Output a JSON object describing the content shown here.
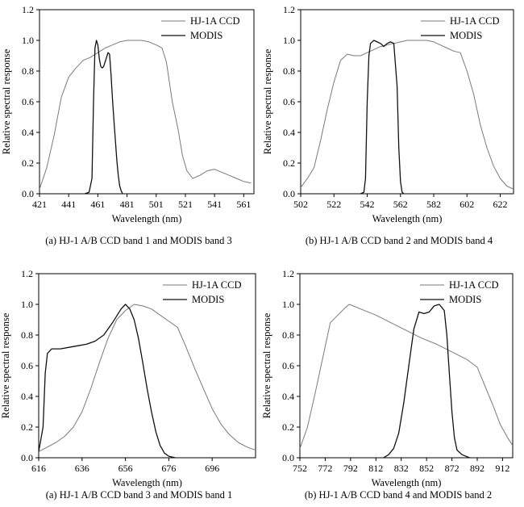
{
  "figure": {
    "panels": [
      {
        "caption": "(a) HJ-1 A/B CCD band 1 and MODIS band 3"
      },
      {
        "caption": "(b) HJ-1 A/B CCD band 2 and MODIS band 4"
      },
      {
        "caption": "(a) HJ-1 A/B CCD band 3 and MODIS band 1"
      },
      {
        "caption": "(b) HJ-1 A/B CCD band 4 and MODIS band 2"
      }
    ]
  },
  "colors": {
    "hj": "#7a7a7a",
    "modis": "#111111"
  },
  "chart_data": [
    {
      "type": "line",
      "xlabel": "Wavelength (nm)",
      "ylabel": "Relative spectral response",
      "xlim": [
        421,
        568
      ],
      "ylim": [
        0,
        1.2
      ],
      "xticks": [
        421,
        441,
        461,
        481,
        501,
        521,
        541,
        561
      ],
      "yticks": [
        0.0,
        0.2,
        0.4,
        0.6,
        0.8,
        1.0,
        1.2
      ],
      "legend_position": "top-right",
      "series": [
        {
          "name": "HJ-1A CCD",
          "points": [
            [
              421,
              0.03
            ],
            [
              426,
              0.17
            ],
            [
              431,
              0.38
            ],
            [
              436,
              0.63
            ],
            [
              441,
              0.76
            ],
            [
              446,
              0.82
            ],
            [
              451,
              0.87
            ],
            [
              456,
              0.89
            ],
            [
              461,
              0.92
            ],
            [
              466,
              0.95
            ],
            [
              471,
              0.97
            ],
            [
              476,
              0.99
            ],
            [
              481,
              1.0
            ],
            [
              486,
              1.0
            ],
            [
              491,
              1.0
            ],
            [
              496,
              0.99
            ],
            [
              501,
              0.97
            ],
            [
              505,
              0.95
            ],
            [
              508,
              0.86
            ],
            [
              512,
              0.6
            ],
            [
              516,
              0.42
            ],
            [
              519,
              0.25
            ],
            [
              522,
              0.15
            ],
            [
              526,
              0.1
            ],
            [
              531,
              0.12
            ],
            [
              536,
              0.15
            ],
            [
              541,
              0.16
            ],
            [
              546,
              0.14
            ],
            [
              551,
              0.12
            ],
            [
              556,
              0.1
            ],
            [
              561,
              0.08
            ],
            [
              566,
              0.07
            ]
          ]
        },
        {
          "name": "MODIS",
          "points": [
            [
              452,
              0.0
            ],
            [
              455,
              0.01
            ],
            [
              457,
              0.1
            ],
            [
              458,
              0.6
            ],
            [
              459,
              0.95
            ],
            [
              460,
              1.0
            ],
            [
              461,
              0.97
            ],
            [
              462,
              0.88
            ],
            [
              463,
              0.83
            ],
            [
              464,
              0.82
            ],
            [
              465,
              0.83
            ],
            [
              466,
              0.86
            ],
            [
              467,
              0.89
            ],
            [
              468,
              0.92
            ],
            [
              469,
              0.91
            ],
            [
              470,
              0.78
            ],
            [
              471,
              0.62
            ],
            [
              472,
              0.48
            ],
            [
              473,
              0.35
            ],
            [
              474,
              0.22
            ],
            [
              475,
              0.12
            ],
            [
              476,
              0.05
            ],
            [
              477,
              0.02
            ],
            [
              478,
              0.0
            ]
          ]
        }
      ]
    },
    {
      "type": "line",
      "xlabel": "Wavelength (nm)",
      "ylabel": "Relative spectral response",
      "xlim": [
        502,
        630
      ],
      "ylim": [
        0,
        1.2
      ],
      "xticks": [
        502,
        522,
        542,
        562,
        582,
        602,
        622
      ],
      "yticks": [
        0.0,
        0.2,
        0.4,
        0.6,
        0.8,
        1.0,
        1.2
      ],
      "legend_position": "top-right",
      "series": [
        {
          "name": "HJ-1A CCD",
          "points": [
            [
              502,
              0.04
            ],
            [
              506,
              0.1
            ],
            [
              510,
              0.17
            ],
            [
              514,
              0.35
            ],
            [
              518,
              0.55
            ],
            [
              522,
              0.73
            ],
            [
              526,
              0.87
            ],
            [
              530,
              0.91
            ],
            [
              534,
              0.9
            ],
            [
              538,
              0.9
            ],
            [
              542,
              0.92
            ],
            [
              546,
              0.94
            ],
            [
              550,
              0.96
            ],
            [
              554,
              0.97
            ],
            [
              558,
              0.98
            ],
            [
              562,
              0.99
            ],
            [
              566,
              1.0
            ],
            [
              570,
              1.0
            ],
            [
              574,
              1.0
            ],
            [
              578,
              1.0
            ],
            [
              582,
              0.99
            ],
            [
              586,
              0.97
            ],
            [
              590,
              0.95
            ],
            [
              594,
              0.93
            ],
            [
              598,
              0.92
            ],
            [
              602,
              0.8
            ],
            [
              606,
              0.65
            ],
            [
              610,
              0.45
            ],
            [
              614,
              0.3
            ],
            [
              618,
              0.18
            ],
            [
              622,
              0.1
            ],
            [
              626,
              0.05
            ],
            [
              630,
              0.03
            ]
          ]
        },
        {
          "name": "MODIS",
          "points": [
            [
              538,
              0.0
            ],
            [
              540,
              0.01
            ],
            [
              541,
              0.1
            ],
            [
              542,
              0.6
            ],
            [
              543,
              0.9
            ],
            [
              544,
              0.98
            ],
            [
              546,
              1.0
            ],
            [
              548,
              0.99
            ],
            [
              550,
              0.98
            ],
            [
              552,
              0.96
            ],
            [
              554,
              0.98
            ],
            [
              556,
              0.99
            ],
            [
              558,
              0.98
            ],
            [
              560,
              0.7
            ],
            [
              561,
              0.3
            ],
            [
              562,
              0.08
            ],
            [
              563,
              0.01
            ],
            [
              564,
              0.0
            ]
          ]
        }
      ]
    },
    {
      "type": "line",
      "xlabel": "Wavelength (nm)",
      "ylabel": "Relative spectral response",
      "xlim": [
        616,
        716
      ],
      "ylim": [
        0,
        1.2
      ],
      "xticks": [
        616,
        636,
        656,
        676,
        696
      ],
      "yticks": [
        0.0,
        0.2,
        0.4,
        0.6,
        0.8,
        1.0,
        1.2
      ],
      "legend_position": "top-right",
      "series": [
        {
          "name": "HJ-1A CCD",
          "points": [
            [
              616,
              0.04
            ],
            [
              620,
              0.07
            ],
            [
              624,
              0.1
            ],
            [
              628,
              0.14
            ],
            [
              632,
              0.2
            ],
            [
              636,
              0.3
            ],
            [
              640,
              0.45
            ],
            [
              644,
              0.62
            ],
            [
              648,
              0.78
            ],
            [
              652,
              0.9
            ],
            [
              656,
              0.96
            ],
            [
              660,
              1.0
            ],
            [
              664,
              0.99
            ],
            [
              668,
              0.97
            ],
            [
              672,
              0.93
            ],
            [
              676,
              0.89
            ],
            [
              680,
              0.85
            ],
            [
              684,
              0.72
            ],
            [
              688,
              0.58
            ],
            [
              692,
              0.45
            ],
            [
              696,
              0.32
            ],
            [
              700,
              0.22
            ],
            [
              704,
              0.15
            ],
            [
              708,
              0.1
            ],
            [
              712,
              0.07
            ],
            [
              716,
              0.05
            ]
          ]
        },
        {
          "name": "MODIS",
          "points": [
            [
              616,
              0.04
            ],
            [
              618,
              0.2
            ],
            [
              619,
              0.55
            ],
            [
              620,
              0.68
            ],
            [
              622,
              0.71
            ],
            [
              626,
              0.71
            ],
            [
              630,
              0.72
            ],
            [
              634,
              0.73
            ],
            [
              638,
              0.74
            ],
            [
              642,
              0.76
            ],
            [
              646,
              0.8
            ],
            [
              650,
              0.88
            ],
            [
              654,
              0.97
            ],
            [
              656,
              1.0
            ],
            [
              658,
              0.97
            ],
            [
              660,
              0.9
            ],
            [
              662,
              0.78
            ],
            [
              664,
              0.62
            ],
            [
              666,
              0.45
            ],
            [
              668,
              0.3
            ],
            [
              670,
              0.17
            ],
            [
              672,
              0.08
            ],
            [
              674,
              0.03
            ],
            [
              676,
              0.01
            ],
            [
              679,
              0.0
            ]
          ]
        }
      ]
    },
    {
      "type": "line",
      "xlabel": "Wavelength (nm)",
      "ylabel": "Relative spectral response",
      "xlim": [
        752,
        920
      ],
      "ylim": [
        0,
        1.2
      ],
      "xticks": [
        752,
        772,
        792,
        812,
        832,
        852,
        872,
        892,
        912
      ],
      "yticks": [
        0.0,
        0.2,
        0.4,
        0.6,
        0.8,
        1.0,
        1.2
      ],
      "legend_position": "top-right",
      "series": [
        {
          "name": "HJ-1A CCD",
          "points": [
            [
              752,
              0.06
            ],
            [
              758,
              0.2
            ],
            [
              764,
              0.42
            ],
            [
              770,
              0.65
            ],
            [
              776,
              0.88
            ],
            [
              782,
              0.93
            ],
            [
              788,
              0.98
            ],
            [
              791,
              1.0
            ],
            [
              800,
              0.97
            ],
            [
              812,
              0.93
            ],
            [
              824,
              0.88
            ],
            [
              836,
              0.83
            ],
            [
              848,
              0.78
            ],
            [
              860,
              0.74
            ],
            [
              872,
              0.69
            ],
            [
              884,
              0.64
            ],
            [
              892,
              0.59
            ],
            [
              898,
              0.47
            ],
            [
              904,
              0.35
            ],
            [
              910,
              0.22
            ],
            [
              916,
              0.13
            ],
            [
              920,
              0.08
            ]
          ]
        },
        {
          "name": "MODIS",
          "points": [
            [
              818,
              0.0
            ],
            [
              822,
              0.02
            ],
            [
              826,
              0.06
            ],
            [
              830,
              0.16
            ],
            [
              834,
              0.36
            ],
            [
              838,
              0.6
            ],
            [
              842,
              0.84
            ],
            [
              846,
              0.95
            ],
            [
              850,
              0.94
            ],
            [
              854,
              0.95
            ],
            [
              858,
              0.99
            ],
            [
              862,
              1.0
            ],
            [
              866,
              0.96
            ],
            [
              868,
              0.8
            ],
            [
              870,
              0.55
            ],
            [
              872,
              0.3
            ],
            [
              874,
              0.13
            ],
            [
              876,
              0.05
            ],
            [
              880,
              0.02
            ],
            [
              886,
              0.0
            ]
          ]
        }
      ]
    }
  ]
}
